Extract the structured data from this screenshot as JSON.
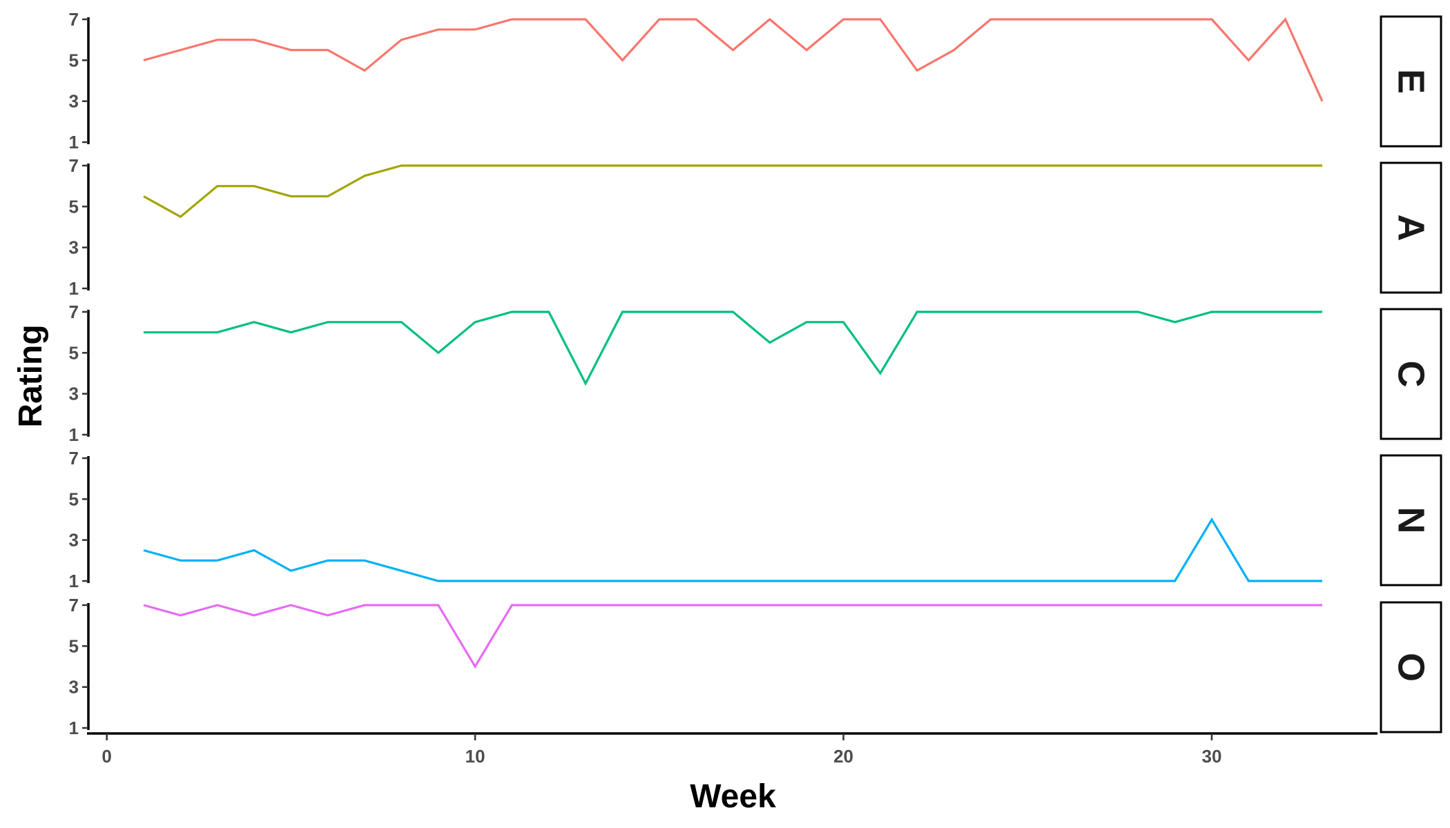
{
  "chart_data": {
    "type": "line",
    "xlabel": "Week",
    "ylabel": "Rating",
    "xlim": [
      -0.5,
      34.5
    ],
    "ylim": [
      1,
      7
    ],
    "x_ticks": [
      0,
      10,
      20,
      30
    ],
    "y_ticks": [
      1,
      3,
      5,
      7
    ],
    "grid": false,
    "facet_strip_position": "right",
    "x": [
      1,
      2,
      3,
      4,
      5,
      6,
      7,
      8,
      9,
      10,
      11,
      12,
      13,
      14,
      15,
      16,
      17,
      18,
      19,
      20,
      21,
      22,
      23,
      24,
      25,
      26,
      27,
      28,
      29,
      30,
      31,
      32,
      33
    ],
    "series": [
      {
        "name": "E",
        "color": "#F8766D",
        "values": [
          5,
          5.5,
          6,
          6,
          5.5,
          5.5,
          4.5,
          6,
          6.5,
          6.5,
          7,
          7,
          7,
          5,
          7,
          7,
          5.5,
          7,
          5.5,
          7,
          7,
          4.5,
          5.5,
          7,
          7,
          7,
          7,
          7,
          7,
          7,
          5,
          7,
          3
        ]
      },
      {
        "name": "A",
        "color": "#A3A500",
        "values": [
          5.5,
          4.5,
          6,
          6,
          5.5,
          5.5,
          6.5,
          7,
          7,
          7,
          7,
          7,
          7,
          7,
          7,
          7,
          7,
          7,
          7,
          7,
          7,
          7,
          7,
          7,
          7,
          7,
          7,
          7,
          7,
          7,
          7,
          7,
          7
        ]
      },
      {
        "name": "C",
        "color": "#00BF7D",
        "values": [
          6,
          6,
          6,
          6.5,
          6,
          6.5,
          6.5,
          6.5,
          5,
          6.5,
          7,
          7,
          3.5,
          7,
          7,
          7,
          7,
          5.5,
          6.5,
          6.5,
          4,
          7,
          7,
          7,
          7,
          7,
          7,
          7,
          6.5,
          7,
          7,
          7,
          7
        ]
      },
      {
        "name": "N",
        "color": "#00B0F6",
        "values": [
          2.5,
          2,
          2,
          2.5,
          1.5,
          2,
          2,
          1.5,
          1,
          1,
          1,
          1,
          1,
          1,
          1,
          1,
          1,
          1,
          1,
          1,
          1,
          1,
          1,
          1,
          1,
          1,
          1,
          1,
          1,
          4,
          1,
          1,
          1
        ]
      },
      {
        "name": "O",
        "color": "#E76BF3",
        "values": [
          7,
          6.5,
          7,
          6.5,
          7,
          6.5,
          7,
          7,
          7,
          4,
          7,
          7,
          7,
          7,
          7,
          7,
          7,
          7,
          7,
          7,
          7,
          7,
          7,
          7,
          7,
          7,
          7,
          7,
          7,
          7,
          7,
          7,
          7
        ]
      }
    ]
  }
}
